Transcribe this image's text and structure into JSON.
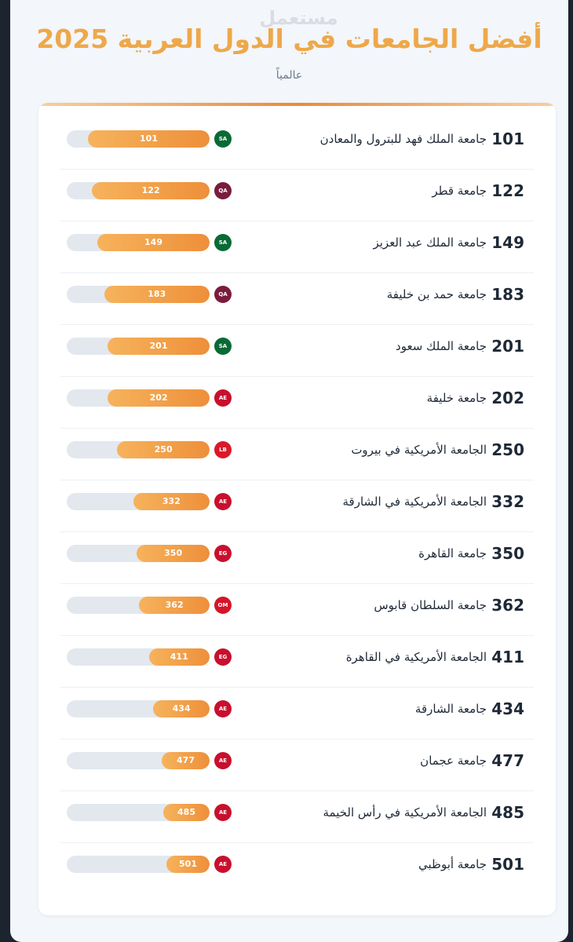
{
  "page": {
    "title": "أفضل الجامعات في الدول العربية 2025",
    "subtitle": "عالمياً",
    "watermark": "مستعمل"
  },
  "colors": {
    "accent": "#eea84a",
    "bar_start": "#f6b35c",
    "bar_end": "#ee8f3a",
    "track": "#e3e8ef"
  },
  "chart_data": {
    "type": "bar",
    "title": "أفضل الجامعات في الدول العربية 2025",
    "subtitle": "عالمياً",
    "orientation": "horizontal",
    "categories": [
      "جامعة الملك فهد للبترول والمعادن",
      "جامعة قطر",
      "جامعة الملك عبد العزيز",
      "جامعة حمد بن خليفة",
      "جامعة الملك سعود",
      "جامعة خليفة",
      "الجامعة الأمريكية في بيروت",
      "الجامعة الأمريكية في الشارقة",
      "جامعة القاهرة",
      "جامعة السلطان قابوس",
      "الجامعة الأمريكية في القاهرة",
      "جامعة الشارقة",
      "جامعة عجمان",
      "الجامعة الأمريكية في رأس الخيمة",
      "جامعة أبوظبي"
    ],
    "values": [
      101,
      122,
      149,
      183,
      201,
      202,
      250,
      332,
      350,
      362,
      411,
      434,
      477,
      485,
      501
    ],
    "countries": [
      "SA",
      "QA",
      "SA",
      "QA",
      "SA",
      "AE",
      "LB",
      "AE",
      "EG",
      "OM",
      "EG",
      "AE",
      "AE",
      "AE",
      "AE"
    ],
    "country_colors": {
      "SA": "#0a6a36",
      "QA": "#7a1c3d",
      "AE": "#c8102e",
      "LB": "#d91a2a",
      "EG": "#c8102e",
      "OM": "#d3162a"
    },
    "grid": false,
    "legend": "none"
  }
}
